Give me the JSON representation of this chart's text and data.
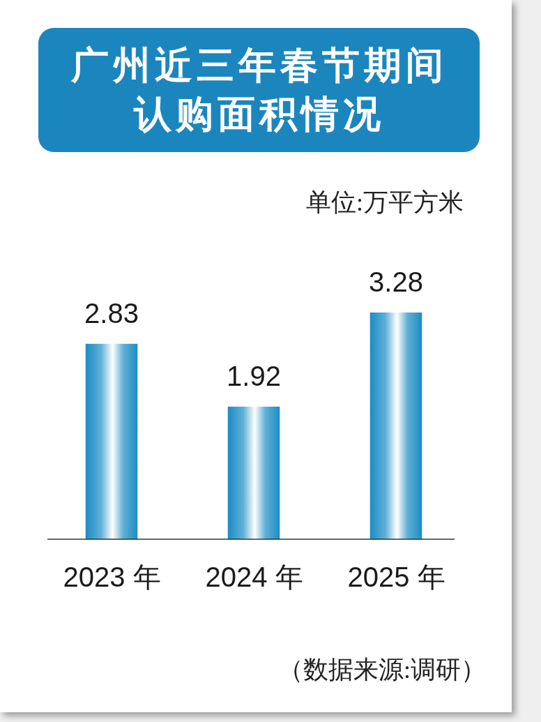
{
  "chart_data": {
    "type": "bar",
    "title": "广州近三年春节期间认购面积情况",
    "subtitle": "单位:万平方米",
    "categories": [
      "2023 年",
      "2024 年",
      "2025 年"
    ],
    "values": [
      2.83,
      1.92,
      3.28
    ],
    "color": "#1a8cc4",
    "data_labels": true,
    "tick_labels": "x",
    "annotations": [
      "（数据来源:调研）"
    ]
  }
}
